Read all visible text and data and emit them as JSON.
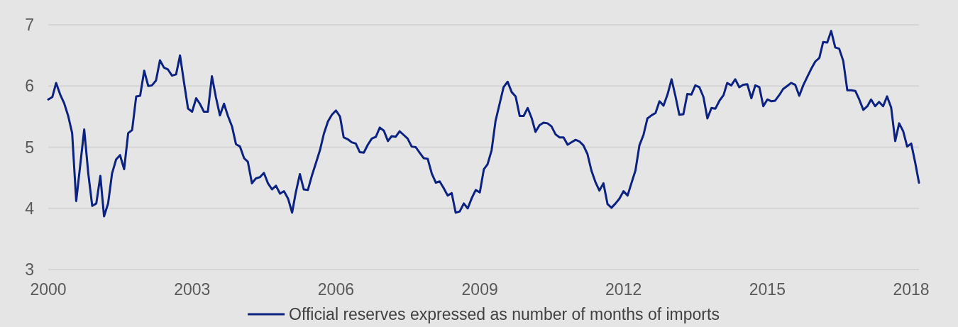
{
  "chart_data": {
    "type": "line",
    "xlim": [
      "2000-01-01",
      "2018-03-01"
    ],
    "xticks": [
      "2000",
      "2003",
      "2006",
      "2009",
      "2012",
      "2015",
      "2018"
    ],
    "ylim": [
      3,
      7
    ],
    "yticks": [
      3,
      4,
      5,
      6,
      7
    ],
    "grid": "y",
    "legend": "bottom",
    "series": [
      {
        "name": "Official reserves expressed as number of months of imports",
        "color": "#0c2280",
        "x": [
          "2000-01",
          "2000-02",
          "2000-03",
          "2000-04",
          "2000-05",
          "2000-06",
          "2000-07",
          "2000-08",
          "2000-10",
          "2000-11",
          "2000-12",
          "2001-01",
          "2001-02",
          "2001-03",
          "2001-04",
          "2001-05",
          "2001-06",
          "2001-07",
          "2001-08",
          "2001-09",
          "2001-10",
          "2001-11",
          "2001-12",
          "2002-01",
          "2002-02",
          "2002-03",
          "2002-04",
          "2002-05",
          "2002-06",
          "2002-07",
          "2002-08",
          "2002-09",
          "2002-10",
          "2002-11",
          "2002-12",
          "2003-01",
          "2003-02",
          "2003-03",
          "2003-04",
          "2003-05",
          "2003-06",
          "2003-07",
          "2003-08",
          "2003-09",
          "2003-10",
          "2003-11",
          "2003-12",
          "2004-01",
          "2004-02",
          "2004-03",
          "2004-04",
          "2004-05",
          "2004-06",
          "2004-07",
          "2004-08",
          "2004-09",
          "2004-10",
          "2004-11",
          "2004-12",
          "2005-01",
          "2005-02",
          "2005-03",
          "2005-04",
          "2005-05",
          "2005-06",
          "2005-07",
          "2005-08",
          "2005-09",
          "2005-10",
          "2005-11",
          "2005-12",
          "2006-01",
          "2006-02",
          "2006-03",
          "2006-04",
          "2006-05",
          "2006-06",
          "2006-07",
          "2006-08",
          "2006-09",
          "2006-10",
          "2006-11",
          "2006-12",
          "2007-01",
          "2007-02",
          "2007-03",
          "2007-04",
          "2007-05",
          "2007-06",
          "2007-07",
          "2007-08",
          "2007-09",
          "2007-10",
          "2007-11",
          "2007-12",
          "2008-01",
          "2008-02",
          "2008-03",
          "2008-04",
          "2008-05",
          "2008-06",
          "2008-07",
          "2008-08",
          "2008-09",
          "2008-10",
          "2008-11",
          "2008-12",
          "2009-01",
          "2009-02",
          "2009-03",
          "2009-04",
          "2009-05",
          "2009-06",
          "2009-07",
          "2009-08",
          "2009-09",
          "2009-10",
          "2009-11",
          "2009-12",
          "2010-01",
          "2010-02",
          "2010-03",
          "2010-04",
          "2010-05",
          "2010-06",
          "2010-07",
          "2010-08",
          "2010-09",
          "2010-10",
          "2010-11",
          "2010-12",
          "2011-01",
          "2011-02",
          "2011-03",
          "2011-04",
          "2011-05",
          "2011-06",
          "2011-07",
          "2011-08",
          "2011-09",
          "2011-10",
          "2011-11",
          "2011-12",
          "2012-01",
          "2012-02",
          "2012-03",
          "2012-04",
          "2012-05",
          "2012-06",
          "2012-07",
          "2012-08",
          "2012-09",
          "2012-10",
          "2012-11",
          "2012-12",
          "2013-01",
          "2013-02",
          "2013-03",
          "2013-04",
          "2013-05",
          "2013-06",
          "2013-07",
          "2013-08",
          "2013-09",
          "2013-10",
          "2013-11",
          "2013-12",
          "2014-01",
          "2014-02",
          "2014-03",
          "2014-04",
          "2014-05",
          "2014-06",
          "2014-07",
          "2014-08",
          "2014-09",
          "2014-10",
          "2014-11",
          "2014-12",
          "2015-01",
          "2015-02",
          "2015-03",
          "2015-04",
          "2015-05",
          "2015-06",
          "2015-07",
          "2015-08",
          "2015-09",
          "2015-10",
          "2015-11",
          "2015-12",
          "2016-01",
          "2016-02",
          "2016-03",
          "2016-04",
          "2016-05",
          "2016-06",
          "2016-07",
          "2016-08",
          "2016-09",
          "2016-10",
          "2016-11",
          "2016-12",
          "2017-01",
          "2017-02",
          "2017-03",
          "2017-04",
          "2017-05",
          "2017-06",
          "2017-07",
          "2017-08",
          "2017-09",
          "2017-10",
          "2017-11",
          "2017-12",
          "2018-01",
          "2018-02",
          "2018-03"
        ],
        "values": [
          5.78,
          5.82,
          6.05,
          5.86,
          5.72,
          5.51,
          5.23,
          4.12,
          5.29,
          4.57,
          4.04,
          4.08,
          4.53,
          3.87,
          4.08,
          4.57,
          4.8,
          4.87,
          4.64,
          5.23,
          5.28,
          5.83,
          5.84,
          6.25,
          6.0,
          6.01,
          6.09,
          6.42,
          6.3,
          6.27,
          6.17,
          6.19,
          6.5,
          6.05,
          5.63,
          5.58,
          5.8,
          5.71,
          5.58,
          5.58,
          6.16,
          5.82,
          5.52,
          5.71,
          5.51,
          5.34,
          5.05,
          5.01,
          4.82,
          4.76,
          4.41,
          4.49,
          4.51,
          4.58,
          4.41,
          4.31,
          4.37,
          4.24,
          4.28,
          4.16,
          3.93,
          4.26,
          4.56,
          4.31,
          4.3,
          4.53,
          4.74,
          4.95,
          5.22,
          5.42,
          5.53,
          5.6,
          5.5,
          5.16,
          5.13,
          5.08,
          5.06,
          4.92,
          4.91,
          5.04,
          5.14,
          5.17,
          5.32,
          5.27,
          5.1,
          5.18,
          5.17,
          5.26,
          5.2,
          5.14,
          5.01,
          5.0,
          4.91,
          4.82,
          4.81,
          4.57,
          4.42,
          4.44,
          4.33,
          4.21,
          4.25,
          3.93,
          3.95,
          4.08,
          4.0,
          4.17,
          4.3,
          4.26,
          4.64,
          4.72,
          4.95,
          5.43,
          5.71,
          5.98,
          6.07,
          5.9,
          5.83,
          5.51,
          5.51,
          5.64,
          5.47,
          5.25,
          5.36,
          5.4,
          5.39,
          5.34,
          5.21,
          5.16,
          5.16,
          5.04,
          5.08,
          5.12,
          5.09,
          5.03,
          4.89,
          4.62,
          4.43,
          4.29,
          4.41,
          4.07,
          4.01,
          4.08,
          4.16,
          4.28,
          4.21,
          4.41,
          4.62,
          5.03,
          5.2,
          5.47,
          5.52,
          5.56,
          5.75,
          5.68,
          5.86,
          6.11,
          5.82,
          5.53,
          5.54,
          5.87,
          5.86,
          6.01,
          5.98,
          5.82,
          5.47,
          5.64,
          5.63,
          5.76,
          5.85,
          6.05,
          6.01,
          6.11,
          5.98,
          6.02,
          6.03,
          5.8,
          6.01,
          5.98,
          5.67,
          5.78,
          5.75,
          5.76,
          5.85,
          5.95,
          6.0,
          6.05,
          6.02,
          5.84,
          6.01,
          6.15,
          6.28,
          6.4,
          6.46,
          6.72,
          6.71,
          6.9,
          6.63,
          6.61,
          6.41,
          5.93,
          5.93,
          5.92,
          5.78,
          5.61,
          5.67,
          5.78,
          5.67,
          5.74,
          5.67,
          5.83,
          5.65,
          5.1,
          5.39,
          5.26,
          5.01,
          5.06,
          4.74,
          4.42
        ]
      }
    ]
  }
}
